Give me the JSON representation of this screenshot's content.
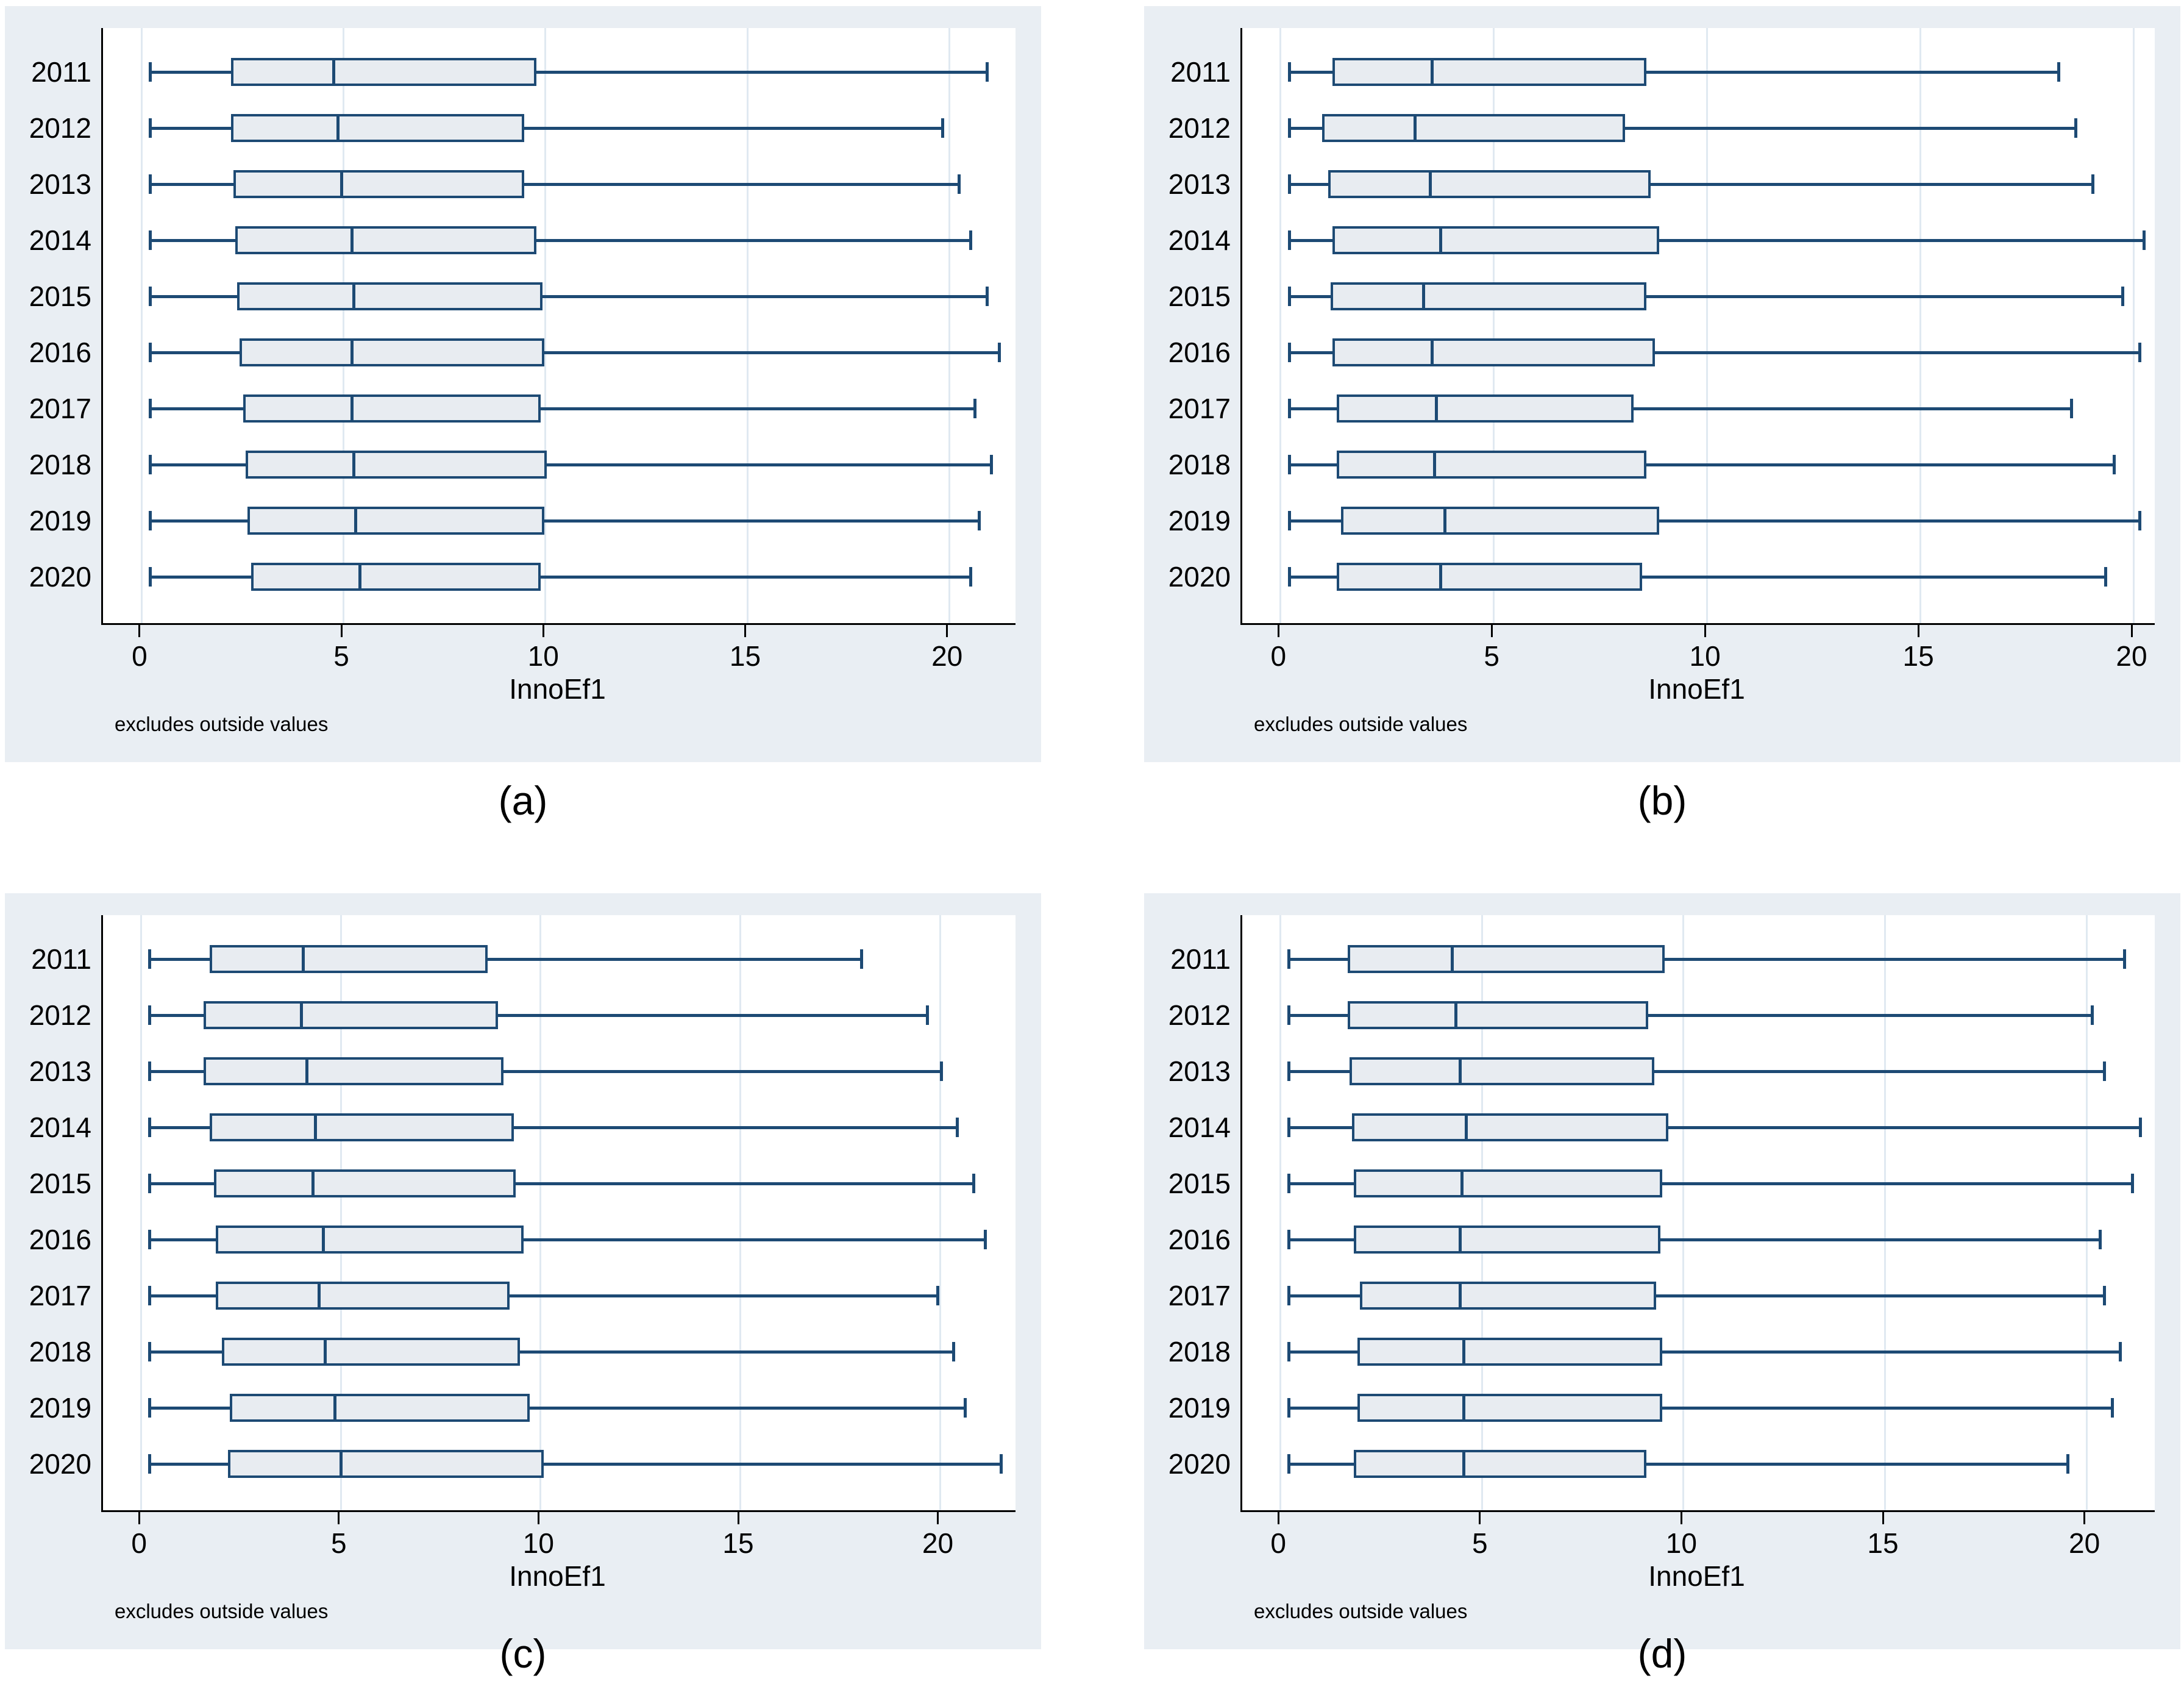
{
  "figure": {
    "note": "excludes outside values",
    "xlabel": "InnoEf1",
    "categories": [
      "2011",
      "2012",
      "2013",
      "2014",
      "2015",
      "2016",
      "2017",
      "2018",
      "2019",
      "2020"
    ],
    "xticks": [
      0,
      5,
      10,
      15,
      20
    ],
    "colors": {
      "figure_background": "#e9eef3",
      "plot_background": "#ffffff",
      "gridline": "#e0e9f1",
      "box_border": "#1d4a74",
      "box_fill": "#e8ecf1",
      "axis_line": "#000000",
      "text": "#000000"
    }
  },
  "chart_data": [
    {
      "type": "box",
      "panel": "a",
      "caption": "(a)",
      "orientation": "horizontal",
      "xlabel": "InnoEf1",
      "note": "excludes outside values",
      "xticks": [
        0,
        5,
        10,
        15,
        20
      ],
      "xlim": [
        -0.95,
        21.65
      ],
      "series": [
        {
          "year": "2011",
          "low": 0.25,
          "q1": 2.3,
          "median": 4.8,
          "q3": 9.8,
          "high": 21.0
        },
        {
          "year": "2012",
          "low": 0.25,
          "q1": 2.3,
          "median": 4.9,
          "q3": 9.5,
          "high": 19.9
        },
        {
          "year": "2013",
          "low": 0.25,
          "q1": 2.35,
          "median": 5.0,
          "q3": 9.5,
          "high": 20.3
        },
        {
          "year": "2014",
          "low": 0.25,
          "q1": 2.4,
          "median": 5.25,
          "q3": 9.8,
          "high": 20.6
        },
        {
          "year": "2015",
          "low": 0.25,
          "q1": 2.45,
          "median": 5.3,
          "q3": 9.95,
          "high": 21.0
        },
        {
          "year": "2016",
          "low": 0.25,
          "q1": 2.5,
          "median": 5.25,
          "q3": 10.0,
          "high": 21.3
        },
        {
          "year": "2017",
          "low": 0.25,
          "q1": 2.6,
          "median": 5.25,
          "q3": 9.9,
          "high": 20.7
        },
        {
          "year": "2018",
          "low": 0.25,
          "q1": 2.65,
          "median": 5.3,
          "q3": 10.05,
          "high": 21.1
        },
        {
          "year": "2019",
          "low": 0.25,
          "q1": 2.7,
          "median": 5.35,
          "q3": 10.0,
          "high": 20.8
        },
        {
          "year": "2020",
          "low": 0.25,
          "q1": 2.8,
          "median": 5.45,
          "q3": 9.9,
          "high": 20.6
        }
      ]
    },
    {
      "type": "box",
      "panel": "b",
      "caption": "(b)",
      "orientation": "horizontal",
      "xlabel": "InnoEf1",
      "note": "excludes outside values",
      "xticks": [
        0,
        5,
        10,
        15,
        20
      ],
      "xlim": [
        -0.89,
        20.5
      ],
      "series": [
        {
          "year": "2011",
          "low": 0.25,
          "q1": 1.3,
          "median": 3.6,
          "q3": 8.6,
          "high": 18.3
        },
        {
          "year": "2012",
          "low": 0.25,
          "q1": 1.05,
          "median": 3.2,
          "q3": 8.1,
          "high": 18.7
        },
        {
          "year": "2013",
          "low": 0.25,
          "q1": 1.2,
          "median": 3.55,
          "q3": 8.7,
          "high": 19.1
        },
        {
          "year": "2014",
          "low": 0.25,
          "q1": 1.3,
          "median": 3.8,
          "q3": 8.9,
          "high": 20.3
        },
        {
          "year": "2015",
          "low": 0.25,
          "q1": 1.25,
          "median": 3.4,
          "q3": 8.6,
          "high": 19.8
        },
        {
          "year": "2016",
          "low": 0.25,
          "q1": 1.3,
          "median": 3.6,
          "q3": 8.8,
          "high": 20.2
        },
        {
          "year": "2017",
          "low": 0.25,
          "q1": 1.4,
          "median": 3.7,
          "q3": 8.3,
          "high": 18.6
        },
        {
          "year": "2018",
          "low": 0.25,
          "q1": 1.4,
          "median": 3.65,
          "q3": 8.6,
          "high": 19.6
        },
        {
          "year": "2019",
          "low": 0.25,
          "q1": 1.5,
          "median": 3.9,
          "q3": 8.9,
          "high": 20.2
        },
        {
          "year": "2020",
          "low": 0.25,
          "q1": 1.4,
          "median": 3.8,
          "q3": 8.5,
          "high": 19.4
        }
      ]
    },
    {
      "type": "box",
      "panel": "c",
      "caption": "(c)",
      "orientation": "horizontal",
      "xlabel": "InnoEf1",
      "note": "excludes outside values",
      "xticks": [
        0,
        5,
        10,
        15,
        20
      ],
      "xlim": [
        -0.95,
        21.9
      ],
      "series": [
        {
          "year": "2011",
          "low": 0.25,
          "q1": 1.8,
          "median": 4.1,
          "q3": 8.7,
          "high": 18.1
        },
        {
          "year": "2012",
          "low": 0.25,
          "q1": 1.65,
          "median": 4.05,
          "q3": 8.95,
          "high": 19.75
        },
        {
          "year": "2013",
          "low": 0.25,
          "q1": 1.65,
          "median": 4.2,
          "q3": 9.1,
          "high": 20.1
        },
        {
          "year": "2014",
          "low": 0.25,
          "q1": 1.8,
          "median": 4.4,
          "q3": 9.35,
          "high": 20.5
        },
        {
          "year": "2015",
          "low": 0.25,
          "q1": 1.9,
          "median": 4.35,
          "q3": 9.4,
          "high": 20.9
        },
        {
          "year": "2016",
          "low": 0.25,
          "q1": 1.95,
          "median": 4.6,
          "q3": 9.6,
          "high": 21.2
        },
        {
          "year": "2017",
          "low": 0.25,
          "q1": 1.95,
          "median": 4.5,
          "q3": 9.25,
          "high": 20.0
        },
        {
          "year": "2018",
          "low": 0.25,
          "q1": 2.1,
          "median": 4.65,
          "q3": 9.5,
          "high": 20.4
        },
        {
          "year": "2019",
          "low": 0.25,
          "q1": 2.3,
          "median": 4.9,
          "q3": 9.75,
          "high": 20.7
        },
        {
          "year": "2020",
          "low": 0.25,
          "q1": 2.25,
          "median": 5.05,
          "q3": 10.1,
          "high": 21.6
        }
      ]
    },
    {
      "type": "box",
      "panel": "d",
      "caption": "(d)",
      "orientation": "horizontal",
      "xlabel": "InnoEf1",
      "note": "excludes outside values",
      "xticks": [
        0,
        5,
        10,
        15,
        20
      ],
      "xlim": [
        -0.94,
        21.7
      ],
      "series": [
        {
          "year": "2011",
          "low": 0.25,
          "q1": 1.75,
          "median": 4.3,
          "q3": 9.55,
          "high": 21.0
        },
        {
          "year": "2012",
          "low": 0.25,
          "q1": 1.75,
          "median": 4.4,
          "q3": 9.15,
          "high": 20.2
        },
        {
          "year": "2013",
          "low": 0.25,
          "q1": 1.8,
          "median": 4.5,
          "q3": 9.3,
          "high": 20.5
        },
        {
          "year": "2014",
          "low": 0.25,
          "q1": 1.85,
          "median": 4.65,
          "q3": 9.65,
          "high": 21.4
        },
        {
          "year": "2015",
          "low": 0.25,
          "q1": 1.9,
          "median": 4.55,
          "q3": 9.5,
          "high": 21.2
        },
        {
          "year": "2016",
          "low": 0.25,
          "q1": 1.9,
          "median": 4.5,
          "q3": 9.45,
          "high": 20.4
        },
        {
          "year": "2017",
          "low": 0.25,
          "q1": 2.05,
          "median": 4.5,
          "q3": 9.35,
          "high": 20.5
        },
        {
          "year": "2018",
          "low": 0.25,
          "q1": 2.0,
          "median": 4.6,
          "q3": 9.5,
          "high": 20.9
        },
        {
          "year": "2019",
          "low": 0.25,
          "q1": 2.0,
          "median": 4.6,
          "q3": 9.5,
          "high": 20.7
        },
        {
          "year": "2020",
          "low": 0.25,
          "q1": 1.9,
          "median": 4.6,
          "q3": 9.1,
          "high": 19.6
        }
      ]
    }
  ]
}
